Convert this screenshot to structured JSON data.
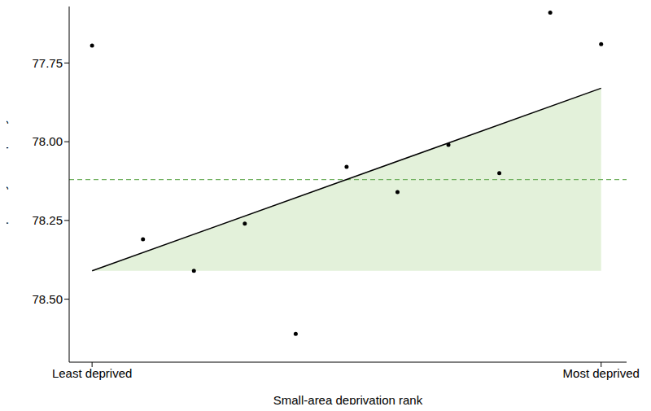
{
  "chart_data": {
    "type": "scatter",
    "x_label": "Small-area deprivation rank",
    "y_label": "CHD primary care quality",
    "x": [
      0,
      1,
      2,
      3,
      4,
      5,
      6,
      7,
      8,
      9,
      10
    ],
    "values": [
      77.695,
      78.31,
      78.41,
      78.26,
      78.61,
      78.08,
      78.16,
      78.01,
      78.1,
      77.59,
      77.69
    ],
    "color": "#000000",
    "fit_line": {
      "x": [
        0,
        10
      ],
      "values": [
        78.41,
        77.83
      ],
      "color": "#000000"
    },
    "mean_line": {
      "value": 78.12,
      "color": "#6fb05e",
      "line_style": "dashed"
    },
    "fill_color": "#e3f1da",
    "xlim": [
      -0.45,
      10.5
    ],
    "xticks": [
      {
        "value": 0,
        "label": "Least deprived"
      },
      {
        "value": 10,
        "label": "Most deprived"
      }
    ],
    "ylim": [
      77.55,
      78.7
    ],
    "yticks": [
      77.75,
      {
        "value": 78,
        "label": "78.00"
      },
      78.25,
      {
        "value": 78.5,
        "label": "78.50"
      }
    ]
  }
}
